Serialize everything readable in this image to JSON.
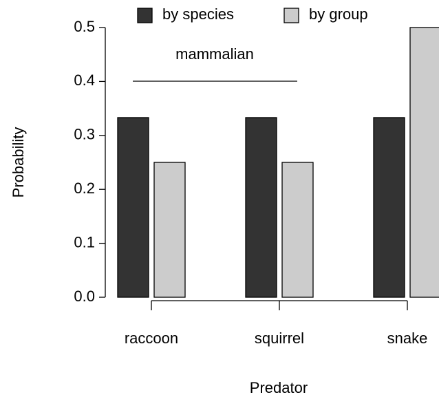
{
  "chart_data": {
    "type": "bar",
    "x_label": "Predator",
    "y_label": "Probability",
    "categories": [
      "raccoon",
      "squirrel",
      "snake"
    ],
    "series": [
      {
        "name": "by species",
        "color": "#333333",
        "values": [
          0.333,
          0.333,
          0.333
        ]
      },
      {
        "name": "by group",
        "color": "#cccccc",
        "values": [
          0.25,
          0.25,
          0.5
        ]
      }
    ],
    "ylim": [
      0,
      0.5
    ],
    "yticks": [
      {
        "value": 0,
        "label": "0.0"
      },
      0.1,
      0.2,
      0.3,
      0.4,
      0.5
    ],
    "annotation": "mammalian"
  }
}
